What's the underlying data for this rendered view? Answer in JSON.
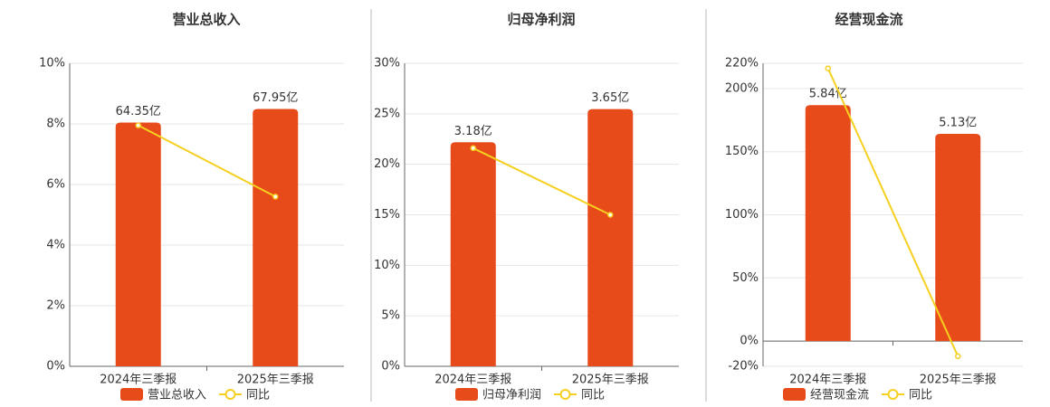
{
  "chart_data": [
    {
      "type": "bar",
      "title": "营业总收入",
      "categories": [
        "2024年三季报",
        "2025年三季报"
      ],
      "series": [
        {
          "name": "营业总收入",
          "type": "bar",
          "axis": "y2",
          "color": "#e84b1a",
          "values": [
            64.35,
            67.95
          ],
          "value_labels": [
            "64.35亿",
            "67.95亿"
          ]
        },
        {
          "name": "同比",
          "type": "line",
          "color": "#f5d020",
          "values": [
            7.95,
            5.6
          ]
        }
      ],
      "ylim": [
        0,
        10
      ],
      "yticks": [
        {
          "value": 0,
          "label": "0%"
        },
        {
          "value": 2,
          "label": "2%"
        },
        {
          "value": 4,
          "label": "4%"
        },
        {
          "value": 6,
          "label": "6%"
        },
        {
          "value": 8,
          "label": "8%"
        },
        {
          "value": 10,
          "label": "10%"
        }
      ],
      "y2lim": [
        0,
        80
      ],
      "grid": true
    },
    {
      "type": "bar",
      "title": "归母净利润",
      "categories": [
        "2024年三季报",
        "2025年三季报"
      ],
      "series": [
        {
          "name": "归母净利润",
          "type": "bar",
          "axis": "y2",
          "color": "#e84b1a",
          "values": [
            3.18,
            3.65
          ],
          "value_labels": [
            "3.18亿",
            "3.65亿"
          ]
        },
        {
          "name": "同比",
          "type": "line",
          "color": "#f5d020",
          "values": [
            21.6,
            15
          ]
        }
      ],
      "ylim": [
        0,
        30
      ],
      "yticks": [
        {
          "value": 0,
          "label": "0%"
        },
        {
          "value": 5,
          "label": "5%"
        },
        {
          "value": 10,
          "label": "10%"
        },
        {
          "value": 15,
          "label": "15%"
        },
        {
          "value": 20,
          "label": "20%"
        },
        {
          "value": 25,
          "label": "25%"
        },
        {
          "value": 30,
          "label": "30%"
        }
      ],
      "y2lim": [
        0,
        4.3
      ],
      "grid": true
    },
    {
      "type": "bar",
      "title": "经营现金流",
      "categories": [
        "2024年三季报",
        "2025年三季报"
      ],
      "series": [
        {
          "name": "经营现金流",
          "type": "bar",
          "axis": "y2",
          "color": "#e84b1a",
          "values": [
            5.84,
            5.13
          ],
          "value_labels": [
            "5.84亿",
            "5.13亿"
          ]
        },
        {
          "name": "同比",
          "type": "line",
          "color": "#f5d020",
          "values": [
            216,
            -12
          ]
        }
      ],
      "ylim": [
        -20,
        220
      ],
      "yticks": [
        {
          "value": -20,
          "label": "-20%"
        },
        {
          "value": 0,
          "label": "0%"
        },
        {
          "value": 50,
          "label": "50%"
        },
        {
          "value": 100,
          "label": "100%"
        },
        {
          "value": 150,
          "label": "150%"
        },
        {
          "value": 200,
          "label": "200%"
        },
        {
          "value": 220,
          "label": "220%"
        }
      ],
      "y2lim": [
        -0.625,
        6.875
      ],
      "grid": true
    }
  ]
}
